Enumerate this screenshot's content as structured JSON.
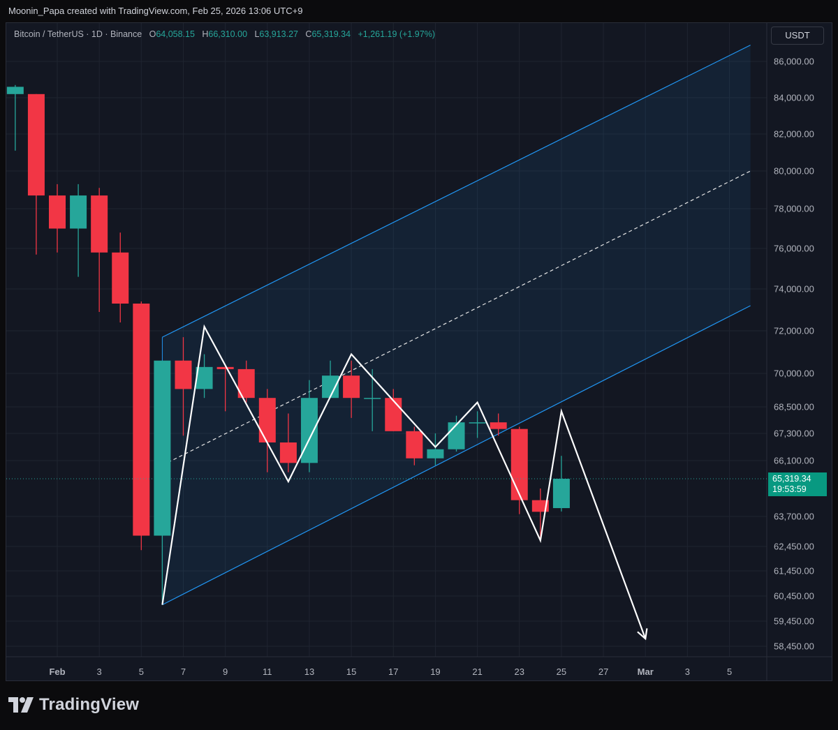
{
  "header": {
    "caption": "Moonin_Papa created with TradingView.com, Feb 25, 2026 13:06 UTC+9"
  },
  "legend": {
    "symbol": "Bitcoin / TetherUS · 1D · Binance",
    "o_label": "O",
    "o_value": "64,058.15",
    "h_label": "H",
    "h_value": "66,310.00",
    "l_label": "L",
    "l_value": "63,913.27",
    "c_label": "C",
    "c_value": "65,319.34",
    "change": "+1,261.19 (+1.97%)"
  },
  "price_axis": {
    "currency": "USDT",
    "last_price": "65,319.34",
    "countdown": "19:53:59"
  },
  "footer": {
    "brand": "TradingView"
  },
  "colors": {
    "up": "#26a69a",
    "down": "#f23645",
    "channel": "#2196f3",
    "background": "#131722",
    "grid": "#1f2430",
    "text": "#b2b5be"
  },
  "chart_data": {
    "type": "candlestick",
    "symbol": "BTCUSDT",
    "interval": "1D",
    "y_ticks": [
      86000,
      84000,
      82000,
      80000,
      78000,
      76000,
      74000,
      72000,
      70000,
      68500,
      67300,
      66100,
      63700,
      62450,
      61450,
      60450,
      59450,
      58450
    ],
    "y_tick_labels": [
      "86,000.00",
      "84,000.00",
      "82,000.00",
      "80,000.00",
      "78,000.00",
      "76,000.00",
      "74,000.00",
      "72,000.00",
      "70,000.00",
      "68,500.00",
      "67,300.00",
      "66,100.00",
      "63,700.00",
      "62,450.00",
      "61,450.00",
      "60,450.00",
      "59,450.00",
      "58,450.00"
    ],
    "x_ticks": [
      {
        "date": "2026-02-01",
        "label": "Feb"
      },
      {
        "date": "2026-02-03",
        "label": "3"
      },
      {
        "date": "2026-02-05",
        "label": "5"
      },
      {
        "date": "2026-02-07",
        "label": "7"
      },
      {
        "date": "2026-02-09",
        "label": "9"
      },
      {
        "date": "2026-02-11",
        "label": "11"
      },
      {
        "date": "2026-02-13",
        "label": "13"
      },
      {
        "date": "2026-02-15",
        "label": "15"
      },
      {
        "date": "2026-02-17",
        "label": "17"
      },
      {
        "date": "2026-02-19",
        "label": "19"
      },
      {
        "date": "2026-02-21",
        "label": "21"
      },
      {
        "date": "2026-02-23",
        "label": "23"
      },
      {
        "date": "2026-02-25",
        "label": "25"
      },
      {
        "date": "2026-02-27",
        "label": "27"
      },
      {
        "date": "2026-03-01",
        "label": "Mar"
      },
      {
        "date": "2026-03-03",
        "label": "3"
      },
      {
        "date": "2026-03-05",
        "label": "5"
      }
    ],
    "candles": [
      {
        "date": "2026-01-30",
        "open": 84200,
        "high": 84700,
        "low": 81100,
        "close": 84600
      },
      {
        "date": "2026-01-31",
        "open": 84200,
        "high": 84200,
        "low": 75700,
        "close": 78700
      },
      {
        "date": "2026-02-01",
        "open": 78700,
        "high": 79300,
        "low": 75800,
        "close": 77000
      },
      {
        "date": "2026-02-02",
        "open": 77000,
        "high": 79300,
        "low": 74600,
        "close": 78700
      },
      {
        "date": "2026-02-03",
        "open": 78700,
        "high": 79100,
        "low": 72900,
        "close": 75800
      },
      {
        "date": "2026-02-04",
        "open": 75800,
        "high": 76800,
        "low": 72400,
        "close": 73300
      },
      {
        "date": "2026-02-05",
        "open": 73300,
        "high": 73400,
        "low": 62300,
        "close": 62900
      },
      {
        "date": "2026-02-06",
        "open": 62900,
        "high": 70600,
        "low": 60100,
        "close": 70600
      },
      {
        "date": "2026-02-07",
        "open": 70600,
        "high": 71700,
        "low": 67200,
        "close": 69300
      },
      {
        "date": "2026-02-08",
        "open": 69300,
        "high": 70900,
        "low": 68900,
        "close": 70300
      },
      {
        "date": "2026-02-09",
        "open": 70300,
        "high": 70400,
        "low": 68300,
        "close": 70200
      },
      {
        "date": "2026-02-10",
        "open": 70200,
        "high": 70600,
        "low": 68700,
        "close": 68900
      },
      {
        "date": "2026-02-11",
        "open": 68900,
        "high": 69300,
        "low": 65600,
        "close": 66900
      },
      {
        "date": "2026-02-12",
        "open": 66900,
        "high": 68200,
        "low": 65600,
        "close": 66000
      },
      {
        "date": "2026-02-13",
        "open": 66000,
        "high": 69700,
        "low": 65600,
        "close": 68900
      },
      {
        "date": "2026-02-14",
        "open": 68900,
        "high": 70600,
        "low": 68900,
        "close": 69900
      },
      {
        "date": "2026-02-15",
        "open": 69900,
        "high": 70600,
        "low": 68000,
        "close": 68900
      },
      {
        "date": "2026-02-16",
        "open": 68900,
        "high": 70200,
        "low": 67400,
        "close": 68900
      },
      {
        "date": "2026-02-17",
        "open": 68900,
        "high": 69300,
        "low": 67400,
        "close": 67400
      },
      {
        "date": "2026-02-18",
        "open": 67400,
        "high": 67600,
        "low": 65900,
        "close": 66200
      },
      {
        "date": "2026-02-19",
        "open": 66200,
        "high": 67300,
        "low": 65900,
        "close": 66600
      },
      {
        "date": "2026-02-20",
        "open": 66600,
        "high": 68100,
        "low": 66500,
        "close": 67800
      },
      {
        "date": "2026-02-21",
        "open": 67800,
        "high": 68300,
        "low": 67100,
        "close": 67800
      },
      {
        "date": "2026-02-22",
        "open": 67800,
        "high": 68200,
        "low": 67200,
        "close": 67500
      },
      {
        "date": "2026-02-23",
        "open": 67500,
        "high": 67600,
        "low": 63800,
        "close": 64400
      },
      {
        "date": "2026-02-24",
        "open": 64400,
        "high": 64900,
        "low": 62700,
        "close": 63900
      },
      {
        "date": "2026-02-25",
        "open": 64058.15,
        "high": 66310,
        "low": 63913.27,
        "close": 65319.34
      }
    ],
    "ascending_channel": {
      "upper": [
        {
          "date": "2026-02-06",
          "price": 71700
        },
        {
          "date": "2026-03-06",
          "price": 86900
        }
      ],
      "middle": [
        {
          "date": "2026-02-06",
          "price": 65900
        },
        {
          "date": "2026-03-06",
          "price": 80000
        }
      ],
      "lower": [
        {
          "date": "2026-02-06",
          "price": 60100
        },
        {
          "date": "2026-03-06",
          "price": 73200
        }
      ]
    },
    "projection_path": [
      {
        "date": "2026-02-06",
        "price": 60100
      },
      {
        "date": "2026-02-08",
        "price": 72200
      },
      {
        "date": "2026-02-12",
        "price": 65200
      },
      {
        "date": "2026-02-15",
        "price": 70900
      },
      {
        "date": "2026-02-19",
        "price": 66700
      },
      {
        "date": "2026-02-21",
        "price": 68700
      },
      {
        "date": "2026-02-24",
        "price": 62700
      },
      {
        "date": "2026-02-25",
        "price": 68300
      },
      {
        "date": "2026-03-01",
        "price": 58750
      }
    ]
  }
}
